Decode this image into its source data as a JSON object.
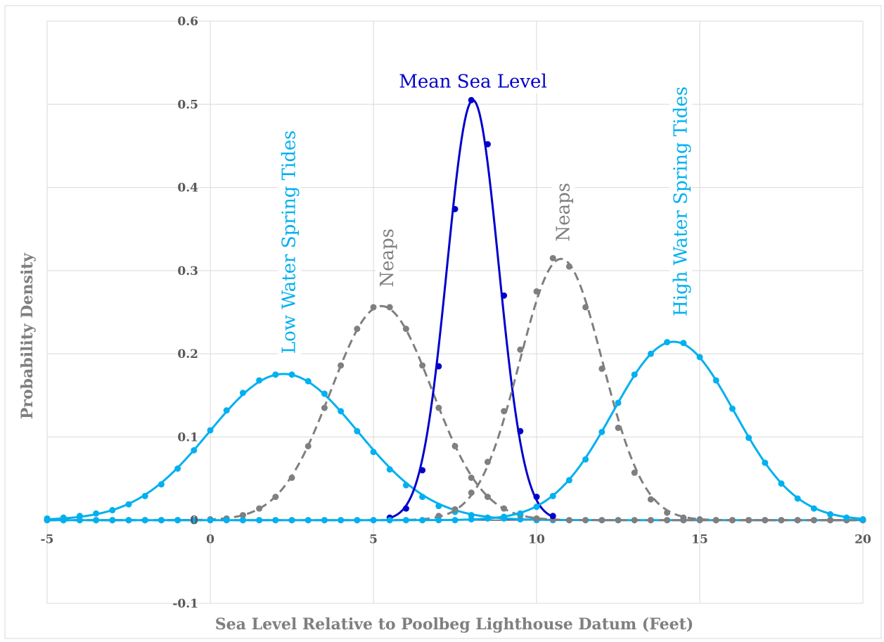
{
  "chart_data": {
    "type": "line",
    "xlabel": "Sea Level Relative to Poolbeg Lighthouse Datum (Feet)",
    "ylabel": "Probability Density",
    "xlim": [
      -5,
      20
    ],
    "ylim": [
      -0.1,
      0.6
    ],
    "xticks": [
      -5,
      0,
      5,
      10,
      15,
      20
    ],
    "xtick_labels": [
      "-5",
      "0",
      "5",
      "10",
      "15",
      "20"
    ],
    "yticks": [
      -0.1,
      0,
      0.1,
      0.2,
      0.3,
      0.4,
      0.5,
      0.6
    ],
    "ytick_labels": [
      "-0.1",
      "0",
      "0.1",
      "0.2",
      "0.3",
      "0.4",
      "0.5",
      "0.6"
    ],
    "grid": true,
    "legend": "none",
    "series": [
      {
        "name": "Low Water Spring Tides",
        "color": "#00b0f0",
        "dash": false,
        "mean": 2.25,
        "sd": 2.27,
        "x": [
          -5,
          -4.5,
          -4,
          -3.5,
          -3,
          -2.5,
          -2,
          -1.5,
          -1,
          -0.5,
          0,
          0.5,
          1,
          1.5,
          2,
          2.5,
          3,
          3.5,
          4,
          4.5,
          5,
          5.5,
          6,
          6.5,
          7,
          7.5,
          8,
          8.5,
          9,
          9.5,
          10,
          10.5,
          11,
          11.5,
          12,
          12.5,
          13,
          13.5,
          14,
          14.5,
          15,
          15.5,
          16,
          16.5,
          17,
          17.5,
          18,
          18.5,
          19,
          19.5,
          20
        ],
        "y": [
          0.002,
          0.003,
          0.005,
          0.008,
          0.012,
          0.019,
          0.029,
          0.043,
          0.062,
          0.084,
          0.108,
          0.132,
          0.153,
          0.168,
          0.175,
          0.175,
          0.167,
          0.152,
          0.131,
          0.107,
          0.082,
          0.061,
          0.042,
          0.028,
          0.017,
          0.01,
          0.006,
          0.003,
          0.002,
          0.001,
          0,
          0,
          0,
          0,
          0,
          0,
          0,
          0,
          0,
          0,
          0,
          0,
          0,
          0,
          0,
          0,
          0,
          0,
          0,
          0,
          0
        ]
      },
      {
        "name": "Neaps",
        "color": "#7f7f7f",
        "dash": true,
        "mean": 5.25,
        "sd": 1.55,
        "x": [
          -5,
          -4.5,
          -4,
          -3.5,
          -3,
          -2.5,
          -2,
          -1.5,
          -1,
          -0.5,
          0,
          0.5,
          1,
          1.5,
          2,
          2.5,
          3,
          3.5,
          4,
          4.5,
          5,
          5.5,
          6,
          6.5,
          7,
          7.5,
          8,
          8.5,
          9,
          9.5,
          10,
          10.5,
          11,
          11.5,
          12,
          12.5,
          13,
          13.5,
          14,
          14.5,
          15,
          15.5,
          16,
          16.5,
          17,
          17.5,
          18,
          18.5,
          19,
          19.5,
          20
        ],
        "y": [
          0,
          0,
          0,
          0,
          0,
          0,
          0,
          0,
          0,
          0,
          0.001,
          0.002,
          0.006,
          0.014,
          0.028,
          0.051,
          0.089,
          0.135,
          0.186,
          0.23,
          0.256,
          0.256,
          0.23,
          0.186,
          0.135,
          0.089,
          0.051,
          0.028,
          0.014,
          0.006,
          0.002,
          0.001,
          0,
          0,
          0,
          0,
          0,
          0,
          0,
          0,
          0,
          0,
          0,
          0,
          0,
          0,
          0,
          0,
          0,
          0,
          0
        ]
      },
      {
        "name": "Mean Sea Level",
        "color": "#0000cc",
        "dash": false,
        "mean": 8.05,
        "sd": 0.79,
        "x": [
          5.5,
          6,
          6.5,
          7,
          7.5,
          8,
          8.5,
          9,
          9.5,
          10,
          10.5
        ],
        "y": [
          0.003,
          0.014,
          0.06,
          0.185,
          0.374,
          0.505,
          0.452,
          0.27,
          0.107,
          0.028,
          0.005
        ]
      },
      {
        "name": "Neaps",
        "color": "#7f7f7f",
        "dash": true,
        "mean": 10.75,
        "sd": 1.27,
        "x": [
          -5,
          -4.5,
          -4,
          -3.5,
          -3,
          -2.5,
          -2,
          -1.5,
          -1,
          -0.5,
          0,
          0.5,
          1,
          1.5,
          2,
          2.5,
          3,
          3.5,
          4,
          4.5,
          5,
          5.5,
          6,
          6.5,
          7,
          7.5,
          8,
          8.5,
          9,
          9.5,
          10,
          10.5,
          11,
          11.5,
          12,
          12.5,
          13,
          13.5,
          14,
          14.5,
          15,
          15.5,
          16,
          16.5,
          17,
          17.5,
          18,
          18.5,
          19,
          19.5,
          20
        ],
        "y": [
          0,
          0,
          0,
          0,
          0,
          0,
          0,
          0,
          0,
          0,
          0,
          0,
          0,
          0,
          0,
          0,
          0,
          0,
          0,
          0,
          0,
          0,
          0,
          0,
          0.005,
          0.013,
          0.033,
          0.07,
          0.131,
          0.205,
          0.275,
          0.315,
          0.305,
          0.256,
          0.182,
          0.111,
          0.057,
          0.025,
          0.009,
          0.003,
          0.001,
          0,
          0,
          0,
          0,
          0,
          0,
          0,
          0,
          0,
          0
        ]
      },
      {
        "name": "High Water Spring Tides",
        "color": "#00b0f0",
        "dash": false,
        "mean": 14.2,
        "sd": 1.86,
        "x": [
          -5,
          -4.5,
          -4,
          -3.5,
          -3,
          -2.5,
          -2,
          -1.5,
          -1,
          -0.5,
          0,
          0.5,
          1,
          1.5,
          2,
          2.5,
          3,
          3.5,
          4,
          4.5,
          5,
          5.5,
          6,
          6.5,
          7,
          7.5,
          8,
          8.5,
          9,
          9.5,
          10,
          10.5,
          11,
          11.5,
          12,
          12.5,
          13,
          13.5,
          14,
          14.5,
          15,
          15.5,
          16,
          16.5,
          17,
          17.5,
          18,
          18.5,
          19,
          19.5,
          20
        ],
        "y": [
          0,
          0,
          0,
          0,
          0,
          0,
          0,
          0,
          0,
          0,
          0,
          0,
          0,
          0,
          0,
          0,
          0,
          0,
          0,
          0,
          0,
          0,
          0,
          0,
          0,
          0,
          0.001,
          0.002,
          0.004,
          0.008,
          0.016,
          0.029,
          0.048,
          0.073,
          0.106,
          0.141,
          0.175,
          0.2,
          0.214,
          0.213,
          0.196,
          0.168,
          0.134,
          0.099,
          0.069,
          0.044,
          0.026,
          0.014,
          0.007,
          0.003,
          0.001
        ]
      }
    ],
    "annotations": [
      {
        "text": "Low Water Spring Tides",
        "color": "#00b0f0",
        "x": 2.6,
        "y": 0.2,
        "rotation": -90
      },
      {
        "text": "Neaps",
        "color": "#7f7f7f",
        "x": 5.6,
        "y": 0.28,
        "rotation": -90
      },
      {
        "text": "Mean Sea Level",
        "color": "#0000cc",
        "x": 8.05,
        "y": 0.52,
        "rotation": 0
      },
      {
        "text": "Neaps",
        "color": "#7f7f7f",
        "x": 11.0,
        "y": 0.335,
        "rotation": -90
      },
      {
        "text": "High Water Spring Tides",
        "color": "#00b0f0",
        "x": 14.6,
        "y": 0.245,
        "rotation": -90
      }
    ]
  }
}
